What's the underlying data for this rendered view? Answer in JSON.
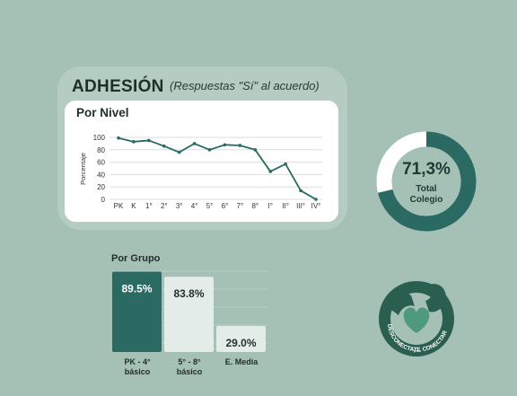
{
  "header": {
    "title": "ADHESIÓN",
    "subtitle": "(Respuestas \"Sí\"  al acuerdo)"
  },
  "colors": {
    "accent": "#2a6a63",
    "light_bar": "#e4ecea",
    "bg": "#a5c0b5"
  },
  "chart_data": [
    {
      "type": "line",
      "title": "Por Nivel",
      "ylabel": "Porcentaje",
      "xlabel": "",
      "categories": [
        "PK",
        "K",
        "1°",
        "2°",
        "3°",
        "4°",
        "5°",
        "6°",
        "7°",
        "8°",
        "I°",
        "II°",
        "III°",
        "IV°"
      ],
      "values": [
        99,
        93,
        95,
        86,
        76,
        90,
        80,
        88,
        87,
        80,
        45,
        57,
        14,
        0
      ],
      "yticks": [
        0,
        20,
        40,
        60,
        80,
        100
      ],
      "ylim": [
        0,
        100
      ],
      "grid": true
    },
    {
      "type": "pie",
      "value": 71.3,
      "value_label": "71,3%",
      "label_lines": [
        "Total",
        "Colegio"
      ]
    },
    {
      "type": "bar",
      "title": "Por Grupo",
      "categories": [
        {
          "line1": "PK - 4°",
          "line2": "básico"
        },
        {
          "line1": "5° - 8°",
          "line2": "básico"
        },
        {
          "line1": "E. Media",
          "line2": ""
        }
      ],
      "values": [
        89.5,
        83.8,
        29.0
      ],
      "value_labels": [
        "89.5%",
        "83.8%",
        "29.0%"
      ],
      "ylim": [
        0,
        100
      ]
    }
  ],
  "logo": {
    "text_left": "DESCONECTATE",
    "text_small": "para",
    "text_right": "CONECTAR",
    "icon": "hands-heart-icon"
  }
}
